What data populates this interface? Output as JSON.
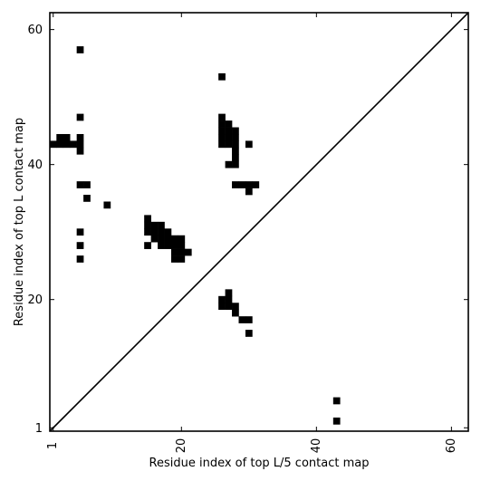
{
  "chart_data": {
    "type": "heatmap",
    "title": "",
    "xlabel": "Residue index of top L/5 contact map",
    "ylabel": "Residue index of top L contact map",
    "xlim": [
      0.5,
      62.5
    ],
    "ylim": [
      0.5,
      62.5
    ],
    "xticks": [
      1,
      20,
      40,
      60
    ],
    "yticks": [
      1,
      20,
      40,
      60
    ],
    "xtick_labels": [
      "1",
      "20",
      "40",
      "60"
    ],
    "ytick_labels": [
      "1",
      "20",
      "40",
      "60"
    ],
    "diagonal": true,
    "grid": false,
    "colors": {
      "contact": "#000000",
      "background": "#ffffff",
      "frame": "#000000"
    },
    "upper_triangle_contacts": [
      [
        5,
        57
      ],
      [
        5,
        47
      ],
      [
        1,
        43
      ],
      [
        2,
        43
      ],
      [
        3,
        43
      ],
      [
        4,
        43
      ],
      [
        5,
        43
      ],
      [
        2,
        44
      ],
      [
        3,
        44
      ],
      [
        5,
        44
      ],
      [
        5,
        42
      ],
      [
        5,
        37
      ],
      [
        6,
        37
      ],
      [
        6,
        35
      ],
      [
        9,
        34
      ],
      [
        5,
        30
      ],
      [
        5,
        28
      ],
      [
        5,
        26
      ],
      [
        15,
        32
      ],
      [
        15,
        31
      ],
      [
        16,
        31
      ],
      [
        17,
        31
      ],
      [
        15,
        30
      ],
      [
        16,
        30
      ],
      [
        17,
        30
      ],
      [
        18,
        30
      ],
      [
        16,
        29
      ],
      [
        17,
        29
      ],
      [
        18,
        29
      ],
      [
        19,
        29
      ],
      [
        20,
        29
      ],
      [
        15,
        28
      ],
      [
        17,
        28
      ],
      [
        18,
        28
      ],
      [
        19,
        28
      ],
      [
        20,
        28
      ],
      [
        19,
        27
      ],
      [
        20,
        27
      ],
      [
        21,
        27
      ],
      [
        19,
        26
      ],
      [
        20,
        26
      ],
      [
        26,
        53
      ],
      [
        26,
        47
      ],
      [
        26,
        46
      ],
      [
        27,
        46
      ],
      [
        26,
        45
      ],
      [
        27,
        45
      ],
      [
        28,
        45
      ],
      [
        26,
        44
      ],
      [
        27,
        44
      ],
      [
        28,
        44
      ],
      [
        26,
        43
      ],
      [
        27,
        43
      ],
      [
        28,
        43
      ],
      [
        30,
        43
      ],
      [
        28,
        42
      ],
      [
        28,
        41
      ],
      [
        27,
        40
      ],
      [
        28,
        40
      ],
      [
        28,
        37
      ],
      [
        29,
        37
      ],
      [
        30,
        37
      ],
      [
        31,
        37
      ],
      [
        30,
        36
      ]
    ],
    "lower_triangle_contacts": [
      [
        27,
        21
      ],
      [
        26,
        20
      ],
      [
        27,
        20
      ],
      [
        26,
        19
      ],
      [
        27,
        19
      ],
      [
        28,
        19
      ],
      [
        28,
        18
      ],
      [
        29,
        17
      ],
      [
        30,
        17
      ],
      [
        30,
        15
      ],
      [
        43,
        5
      ],
      [
        43,
        2
      ]
    ]
  }
}
